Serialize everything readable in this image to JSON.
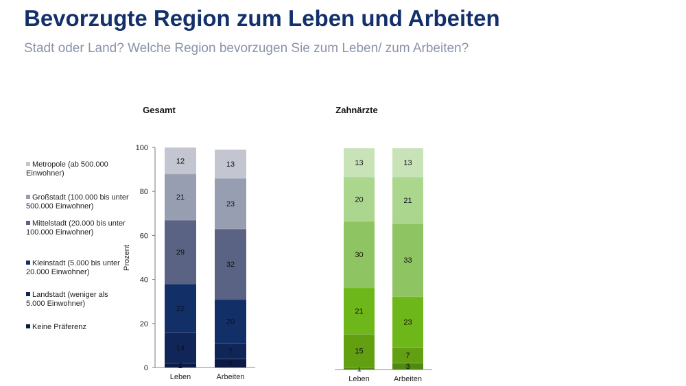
{
  "title": "Bevorzugte Region zum Leben und Arbeiten",
  "subtitle": "Stadt oder Land? Welche Region bevorzugen Sie zum Leben/ zum Arbeiten?",
  "legend": [
    {
      "label": "Metropole (ab 500.000 Einwohner)",
      "color": "#c3c6d1"
    },
    {
      "label": "Großstadt (100.000 bis unter 500.000 Einwohner)",
      "color": "#989eb2"
    },
    {
      "label": "Mittelstadt (20.000 bis unter 100.000 Einwohner)",
      "color": "#5b6385"
    },
    {
      "label": "Kleinstadt (5.000 bis unter 20.000 Einwohner)",
      "color": "#132f68"
    },
    {
      "label": "Landstadt (weniger als 5.000 Einwohner)",
      "color": "#102659"
    },
    {
      "label": "Keine Präferenz",
      "color": "#0c1b46"
    }
  ],
  "chart_data": [
    {
      "type": "stacked-bar",
      "title": "Gesamt",
      "ylabel": "Prozent",
      "ylim": [
        0,
        100
      ],
      "yticks": [
        0,
        20,
        40,
        60,
        80,
        100
      ],
      "categories": [
        "Leben",
        "Arbeiten"
      ],
      "series": [
        {
          "name": "Keine Präferenz",
          "color": "#0c1b46",
          "values": [
            2,
            4
          ]
        },
        {
          "name": "Landstadt",
          "color": "#102659",
          "values": [
            14,
            7
          ]
        },
        {
          "name": "Kleinstadt",
          "color": "#132f68",
          "values": [
            22,
            20
          ]
        },
        {
          "name": "Mittelstadt",
          "color": "#5b6385",
          "values": [
            29,
            32
          ]
        },
        {
          "name": "Großstadt",
          "color": "#989eb2",
          "values": [
            21,
            23
          ]
        },
        {
          "name": "Metropole",
          "color": "#c3c6d1",
          "values": [
            12,
            13
          ]
        }
      ]
    },
    {
      "type": "stacked-bar",
      "title": "Zahnärzte",
      "ylim": [
        0,
        100
      ],
      "categories": [
        "Leben",
        "Arbeiten"
      ],
      "series": [
        {
          "name": "Keine Präferenz",
          "color": "#4f8a10",
          "values": [
            1,
            3
          ]
        },
        {
          "name": "Landstadt",
          "color": "#62a012",
          "values": [
            15,
            7
          ]
        },
        {
          "name": "Kleinstadt",
          "color": "#6eb71a",
          "values": [
            21,
            23
          ]
        },
        {
          "name": "Mittelstadt",
          "color": "#8fc462",
          "values": [
            30,
            33
          ]
        },
        {
          "name": "Großstadt",
          "color": "#aad68e",
          "values": [
            20,
            21
          ]
        },
        {
          "name": "Metropole",
          "color": "#c8e3b8",
          "values": [
            13,
            13
          ]
        }
      ]
    }
  ]
}
